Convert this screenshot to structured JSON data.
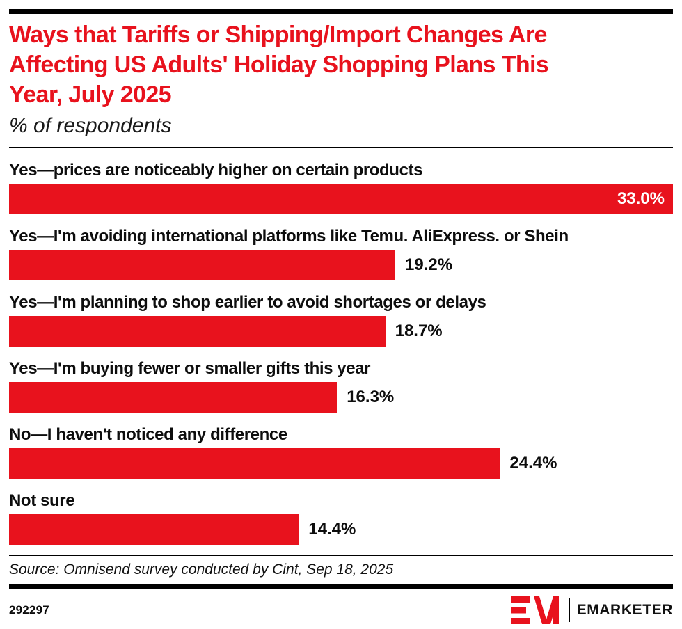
{
  "colors": {
    "accent_red": "#e8121d",
    "text_black": "#0d0d0d",
    "bar_value_inside": "#ffffff"
  },
  "header": {
    "title_lines": [
      "Ways that Tariffs or Shipping/Import Changes Are",
      "Affecting US Adults' Holiday Shopping Plans This",
      "Year, July 2025"
    ],
    "subtitle": "% of respondents"
  },
  "chart_data": {
    "type": "bar",
    "orientation": "horizontal",
    "title": "Ways that Tariffs or Shipping/Import Changes Are Affecting US Adults' Holiday Shopping Plans This Year, July 2025",
    "subtitle": "% of respondents",
    "unit": "%",
    "axis_max_value": 33.0,
    "categories": [
      "Yes—prices are noticeably higher on certain products",
      "Yes—I'm avoiding international platforms like Temu. AliExpress. or Shein",
      "Yes—I'm planning to shop earlier to avoid shortages or delays",
      "Yes—I'm buying fewer or smaller gifts this year",
      "No—I haven't noticed any difference",
      "Not sure"
    ],
    "values": [
      33.0,
      19.2,
      18.7,
      16.3,
      24.4,
      14.4
    ],
    "value_labels": [
      "33.0%",
      "19.2%",
      "18.7%",
      "16.3%",
      "24.4%",
      "14.4%"
    ],
    "bar_color": "#e8121d",
    "grid": false,
    "legend": false
  },
  "footer": {
    "source": "Source: Omnisend survey conducted by Cint, Sep 18, 2025",
    "chart_id": "292297",
    "brand_name": "EMARKETER",
    "logo": "emarketer-em-logo"
  }
}
